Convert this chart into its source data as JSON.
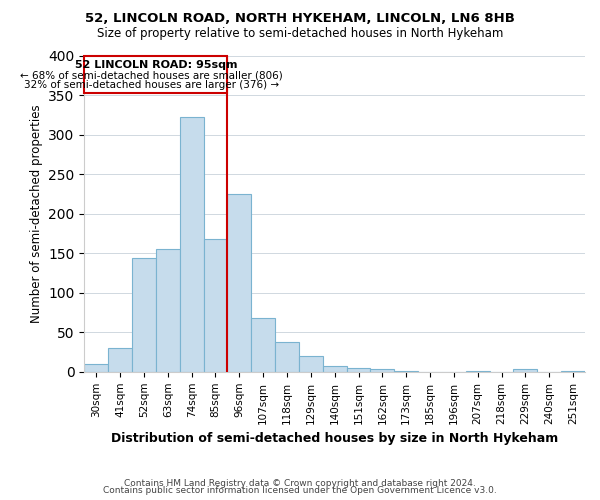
{
  "title": "52, LINCOLN ROAD, NORTH HYKEHAM, LINCOLN, LN6 8HB",
  "subtitle": "Size of property relative to semi-detached houses in North Hykeham",
  "xlabel": "Distribution of semi-detached houses by size in North Hykeham",
  "ylabel": "Number of semi-detached properties",
  "footer1": "Contains HM Land Registry data © Crown copyright and database right 2024.",
  "footer2": "Contains public sector information licensed under the Open Government Licence v3.0.",
  "bin_labels": [
    "30sqm",
    "41sqm",
    "52sqm",
    "63sqm",
    "74sqm",
    "85sqm",
    "96sqm",
    "107sqm",
    "118sqm",
    "129sqm",
    "140sqm",
    "151sqm",
    "162sqm",
    "173sqm",
    "185sqm",
    "196sqm",
    "207sqm",
    "218sqm",
    "229sqm",
    "240sqm",
    "251sqm"
  ],
  "bar_values": [
    10,
    30,
    144,
    155,
    322,
    168,
    225,
    68,
    38,
    20,
    7,
    5,
    3,
    1,
    0,
    0,
    1,
    0,
    3,
    0,
    1
  ],
  "bar_color": "#c6dcec",
  "bar_edge_color": "#7ab3d0",
  "vline_color": "#cc0000",
  "vline_position": 5.5,
  "annotation_title": "52 LINCOLN ROAD: 95sqm",
  "annotation_line1": "← 68% of semi-detached houses are smaller (806)",
  "annotation_line2": "32% of semi-detached houses are larger (376) →",
  "ylim": [
    0,
    400
  ],
  "yticks": [
    0,
    50,
    100,
    150,
    200,
    250,
    300,
    350,
    400
  ],
  "background_color": "#ffffff",
  "grid_color": "#d0d8e0"
}
